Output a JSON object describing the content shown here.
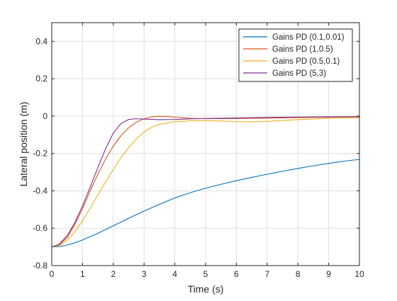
{
  "chart_data": {
    "type": "line",
    "xlabel": "Time (s)",
    "ylabel": "Lateral position (m)",
    "xlim": [
      0,
      10
    ],
    "ylim": [
      -0.8,
      0.5
    ],
    "xticks": [
      0,
      1,
      2,
      3,
      4,
      5,
      6,
      7,
      8,
      9,
      10
    ],
    "yticks": [
      -0.8,
      -0.6,
      -0.4,
      -0.2,
      0,
      0.2,
      0.4
    ],
    "ytick_labels": [
      "-0.8",
      "-0.6",
      "-0.4",
      "-0.2",
      "0",
      "0.2",
      "0.4"
    ],
    "grid": true,
    "legend_position": "top-right",
    "series": [
      {
        "name": "Gains PD (0.1,0.01)",
        "color": "#0072BD",
        "x": [
          0,
          0.25,
          0.5,
          0.75,
          1,
          1.5,
          2,
          2.5,
          3,
          3.5,
          4,
          4.5,
          5,
          5.5,
          6,
          6.5,
          7,
          7.5,
          8,
          8.5,
          9,
          9.5,
          10
        ],
        "y": [
          -0.7,
          -0.698,
          -0.69,
          -0.678,
          -0.663,
          -0.627,
          -0.587,
          -0.547,
          -0.508,
          -0.472,
          -0.438,
          -0.41,
          -0.386,
          -0.365,
          -0.346,
          -0.328,
          -0.311,
          -0.295,
          -0.28,
          -0.266,
          -0.253,
          -0.241,
          -0.232
        ]
      },
      {
        "name": "Gains PD (1,0.5)",
        "color": "#D95319",
        "x": [
          0,
          0.25,
          0.5,
          0.75,
          1,
          1.25,
          1.5,
          1.75,
          2,
          2.25,
          2.5,
          2.75,
          3,
          3.25,
          3.5,
          3.75,
          4,
          4.5,
          5,
          6,
          7,
          8,
          9,
          10
        ],
        "y": [
          -0.7,
          -0.688,
          -0.65,
          -0.58,
          -0.495,
          -0.4,
          -0.31,
          -0.23,
          -0.16,
          -0.105,
          -0.063,
          -0.032,
          -0.014,
          -0.004,
          -0.001,
          -0.002,
          -0.006,
          -0.012,
          -0.014,
          -0.013,
          -0.011,
          -0.008,
          -0.006,
          -0.004
        ]
      },
      {
        "name": "Gains PD (0.5,0.1)",
        "color": "#EDB120",
        "x": [
          0,
          0.25,
          0.5,
          0.75,
          1,
          1.25,
          1.5,
          1.75,
          2,
          2.25,
          2.5,
          2.75,
          3,
          3.25,
          3.5,
          4,
          4.5,
          5,
          5.5,
          6,
          6.5,
          7,
          8,
          9,
          10
        ],
        "y": [
          -0.7,
          -0.692,
          -0.665,
          -0.62,
          -0.56,
          -0.492,
          -0.422,
          -0.352,
          -0.285,
          -0.222,
          -0.168,
          -0.122,
          -0.085,
          -0.06,
          -0.044,
          -0.03,
          -0.025,
          -0.024,
          -0.026,
          -0.03,
          -0.031,
          -0.028,
          -0.019,
          -0.012,
          -0.008
        ]
      },
      {
        "name": "Gains PD (5,3)",
        "color": "#7E2F8E",
        "x": [
          0,
          0.25,
          0.5,
          0.75,
          1,
          1.25,
          1.5,
          1.75,
          2,
          2.25,
          2.5,
          2.75,
          3,
          3.5,
          4,
          4.5,
          5,
          6,
          7,
          8,
          9,
          10
        ],
        "y": [
          -0.7,
          -0.685,
          -0.64,
          -0.57,
          -0.48,
          -0.38,
          -0.275,
          -0.175,
          -0.09,
          -0.04,
          -0.018,
          -0.014,
          -0.016,
          -0.019,
          -0.018,
          -0.015,
          -0.013,
          -0.01,
          -0.007,
          -0.005,
          -0.004,
          -0.003
        ]
      }
    ]
  }
}
